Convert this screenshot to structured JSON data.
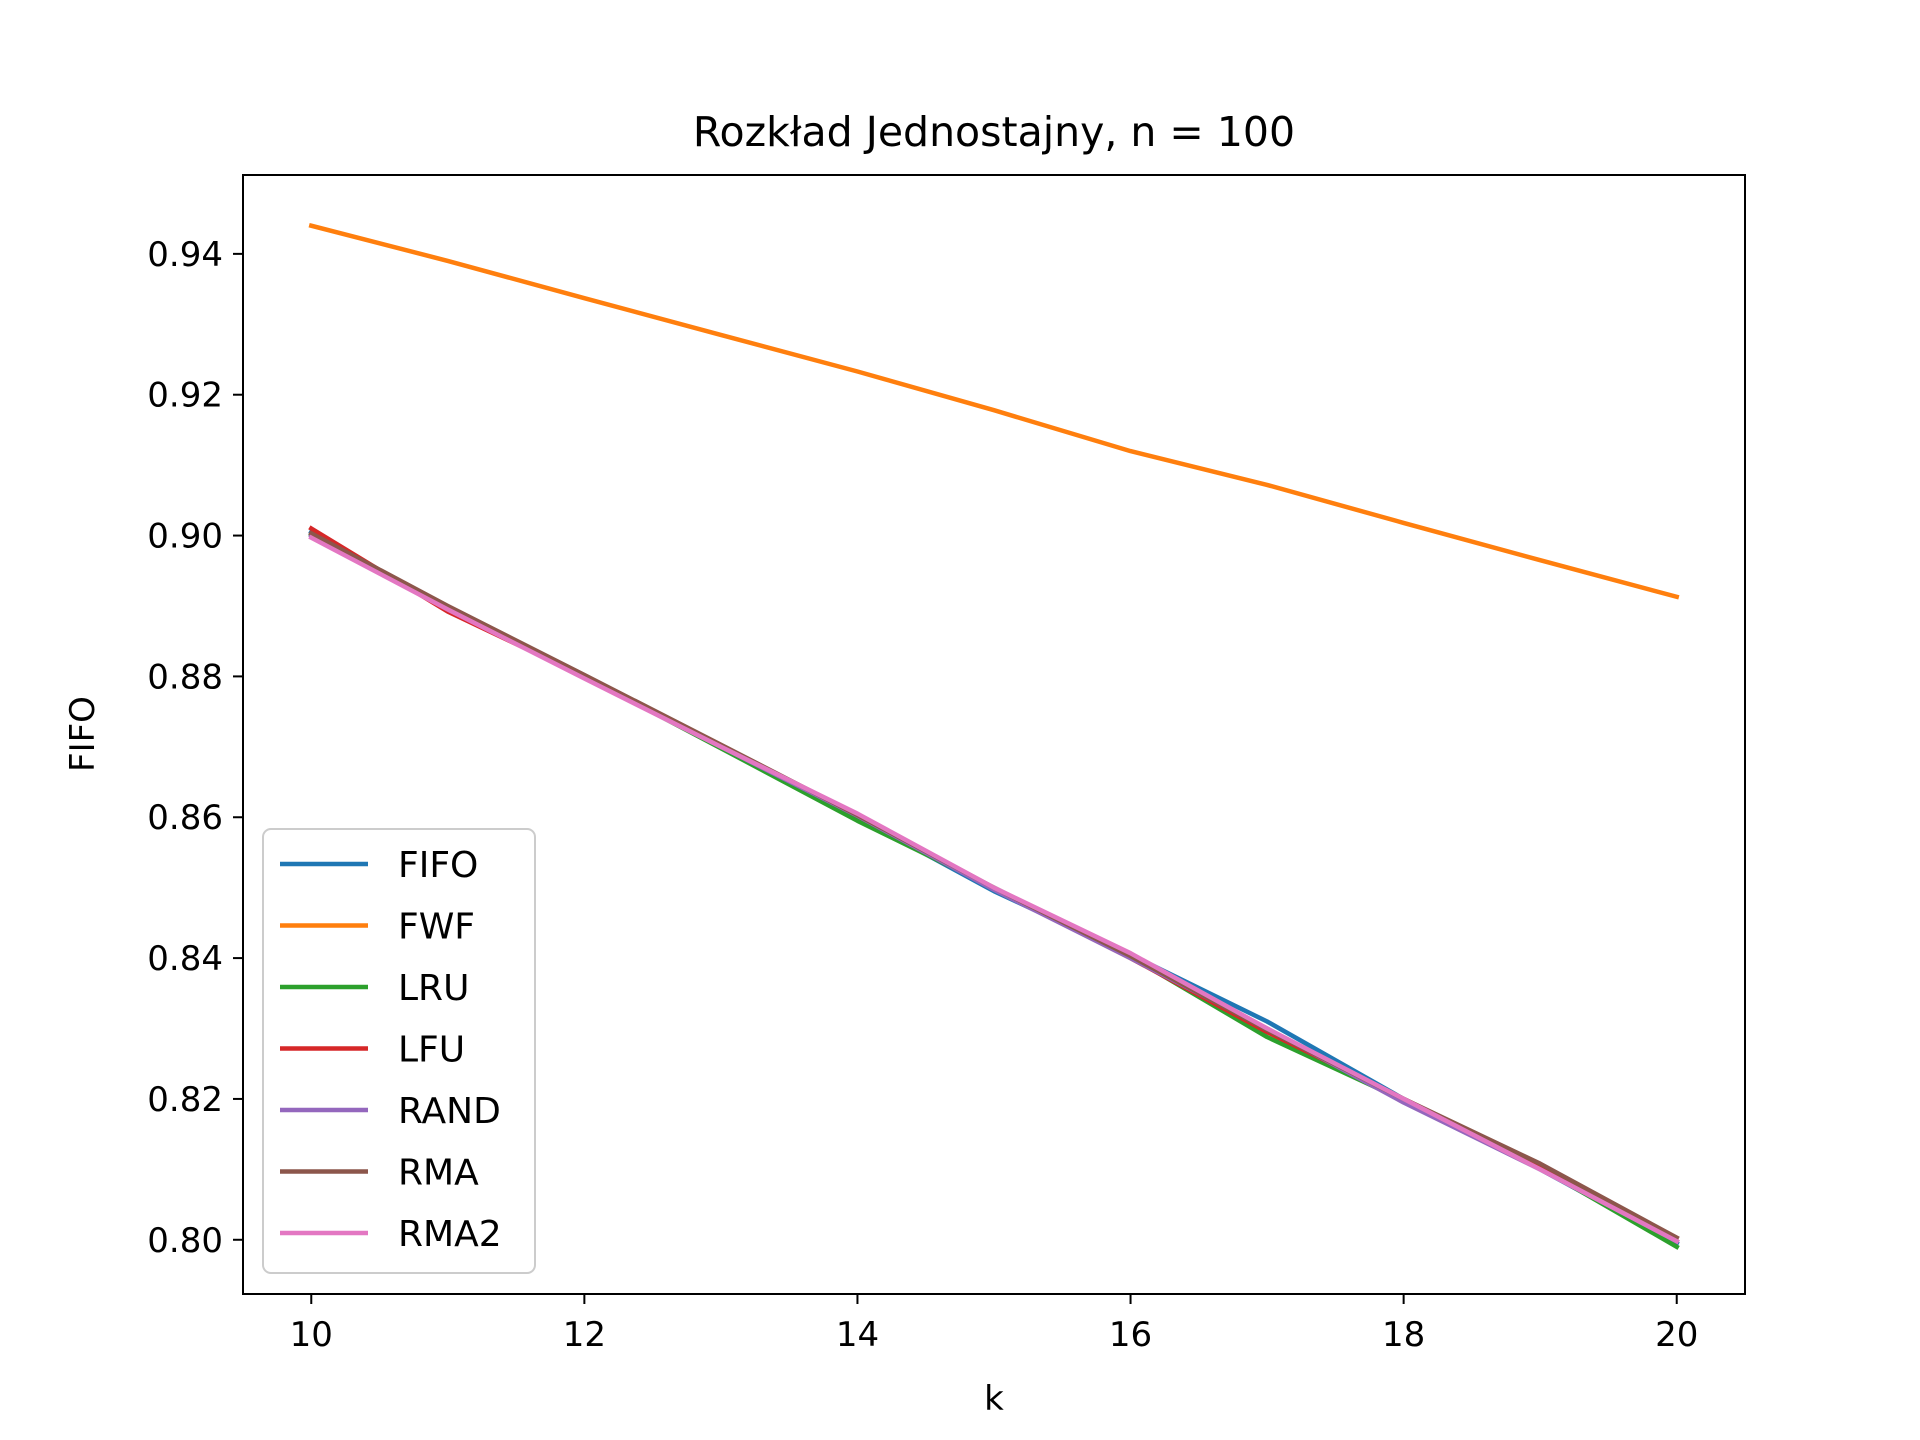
{
  "chart_data": {
    "type": "line",
    "title": "Rozkład Jednostajny, n = 100",
    "xlabel": "k",
    "ylabel": "FIFO",
    "xlim": [
      9.5,
      20.5
    ],
    "ylim": [
      0.7923,
      0.9512
    ],
    "xticks": [
      10,
      12,
      14,
      16,
      18,
      20
    ],
    "xtick_labels": [
      "10",
      "12",
      "14",
      "16",
      "18",
      "20"
    ],
    "yticks": [
      0.8,
      0.82,
      0.84,
      0.86,
      0.88,
      0.9,
      0.92,
      0.94
    ],
    "ytick_labels": [
      "0.80",
      "0.82",
      "0.84",
      "0.86",
      "0.88",
      "0.90",
      "0.92",
      "0.94"
    ],
    "grid": false,
    "legend_position": "lower-left",
    "x": [
      10,
      11,
      12,
      13,
      14,
      15,
      16,
      17,
      18,
      19,
      20
    ],
    "series": [
      {
        "name": "FIFO",
        "color": "#1f77b4",
        "values": [
          0.9005,
          0.8895,
          0.88,
          0.87,
          0.86,
          0.8495,
          0.8405,
          0.831,
          0.82,
          0.81,
          0.7995
        ]
      },
      {
        "name": "FWF",
        "color": "#ff7f0e",
        "values": [
          0.944,
          0.939,
          0.9337,
          0.9285,
          0.9233,
          0.9178,
          0.912,
          0.9072,
          0.9018,
          0.8965,
          0.8913
        ]
      },
      {
        "name": "LRU",
        "color": "#2ca02c",
        "values": [
          0.9002,
          0.8898,
          0.88,
          0.8698,
          0.8595,
          0.85,
          0.8402,
          0.8288,
          0.8198,
          0.8102,
          0.799
        ]
      },
      {
        "name": "LFU",
        "color": "#d62728",
        "values": [
          0.901,
          0.8892,
          0.88,
          0.8702,
          0.8602,
          0.8498,
          0.84,
          0.8295,
          0.82,
          0.8105,
          0.7998
        ]
      },
      {
        "name": "RAND",
        "color": "#9467bd",
        "values": [
          0.9,
          0.8898,
          0.8798,
          0.87,
          0.8602,
          0.8497,
          0.84,
          0.83,
          0.8195,
          0.81,
          0.7998
        ]
      },
      {
        "name": "RMA",
        "color": "#8c564b",
        "values": [
          0.9003,
          0.89,
          0.8802,
          0.8703,
          0.8603,
          0.85,
          0.8403,
          0.8298,
          0.82,
          0.8108,
          0.8003
        ]
      },
      {
        "name": "RMA2",
        "color": "#e377c2",
        "values": [
          0.8997,
          0.8895,
          0.8797,
          0.87,
          0.8605,
          0.85,
          0.8407,
          0.83,
          0.82,
          0.81,
          0.7998
        ]
      }
    ]
  }
}
